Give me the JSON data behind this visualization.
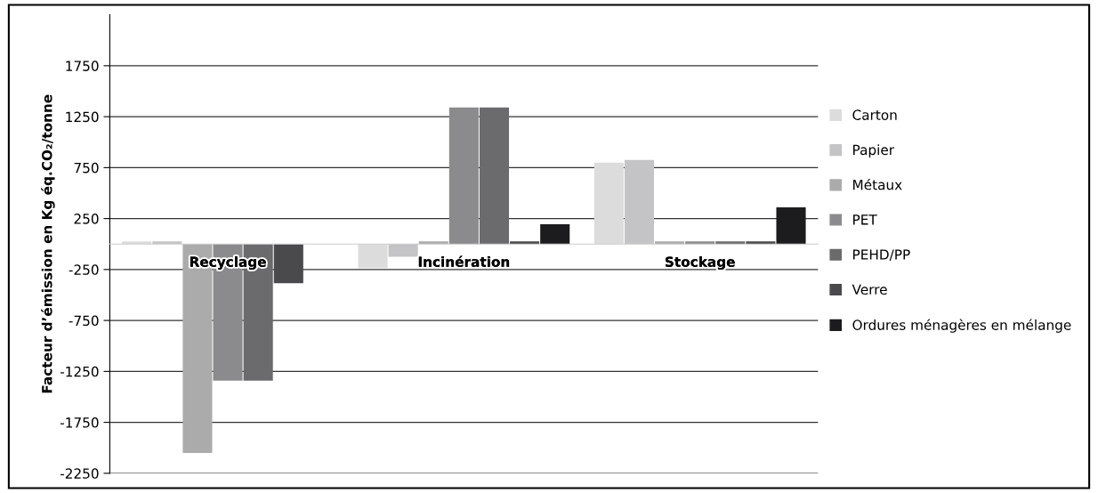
{
  "chart_data": {
    "type": "bar",
    "ylabel": "Facteur d’émission en Kg éq.CO₂/tonne",
    "categories": [
      "Recyclage",
      "Incinération",
      "Stockage"
    ],
    "series": [
      {
        "name": "Carton",
        "color": "#dcdcdc",
        "values": [
          25,
          -235,
          800
        ]
      },
      {
        "name": "Papier",
        "color": "#c4c4c6",
        "values": [
          25,
          -125,
          825
        ]
      },
      {
        "name": "Métaux",
        "color": "#ababab",
        "values": [
          -2050,
          25,
          25
        ]
      },
      {
        "name": "PET",
        "color": "#8b8b8d",
        "values": [
          -1340,
          1340,
          25
        ]
      },
      {
        "name": "PEHD/PP",
        "color": "#6b6b6d",
        "values": [
          -1340,
          1340,
          25
        ]
      },
      {
        "name": "Verre",
        "color": "#4a4a4c",
        "values": [
          -385,
          25,
          25
        ]
      },
      {
        "name": "Ordures ménagères en mélange",
        "color": "#1c1c1e",
        "values": [
          0,
          195,
          360
        ]
      }
    ],
    "ylim": [
      -2250,
      2250
    ],
    "yticks": [
      -2250,
      -1750,
      -1250,
      -750,
      -250,
      250,
      750,
      1250,
      1750
    ],
    "grid": "y",
    "legend": "right"
  }
}
